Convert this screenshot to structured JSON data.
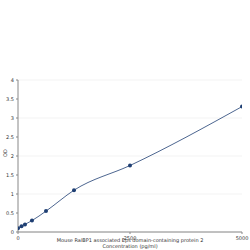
{
  "chart_data": {
    "type": "line",
    "xlabel": [
      "Mouse RalBP1 associated Eps domain-containing protein 2",
      "Concentration (pg/ml)"
    ],
    "ylabel": "OD",
    "x": [
      0,
      78,
      156,
      312,
      625,
      1250,
      2500,
      5000
    ],
    "values": [
      0.1,
      0.15,
      0.2,
      0.3,
      0.55,
      1.1,
      1.75,
      3.3
    ],
    "color": "#1f3f73",
    "marker": "circle",
    "xlim": [
      0,
      5000
    ],
    "xticks": [
      0,
      2500,
      5000
    ],
    "ylim": [
      0,
      4
    ],
    "yticks": [
      0,
      0.5,
      1,
      1.5,
      2,
      2.5,
      3,
      3.5,
      4
    ],
    "grid": true
  }
}
